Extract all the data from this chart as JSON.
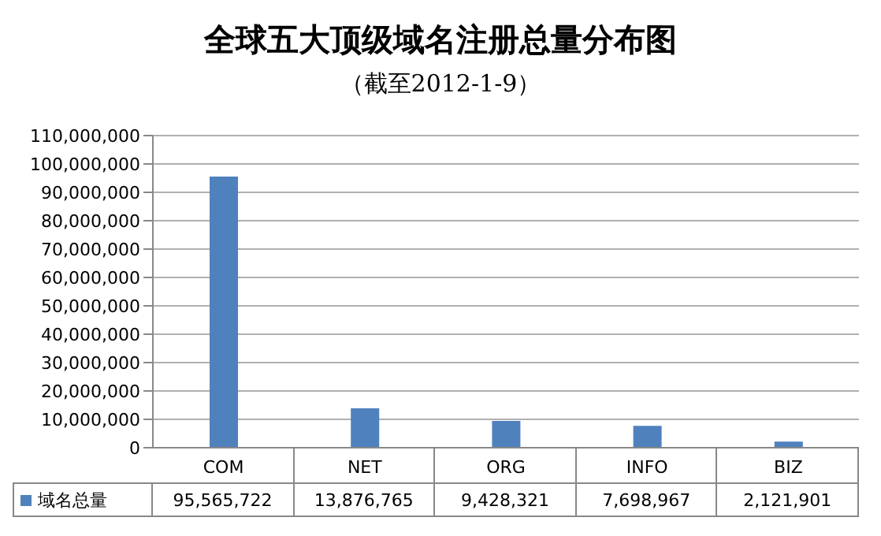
{
  "chart_data": {
    "type": "bar",
    "title": "全球五大顶级域名注册总量分布图",
    "subtitle": "（截至2012-1-9）",
    "categories": [
      "COM",
      "NET",
      "ORG",
      "INFO",
      "BIZ"
    ],
    "series": [
      {
        "name": "域名总量",
        "color": "#4f81bd",
        "values": [
          95565722,
          13876765,
          9428321,
          7698967,
          2121901
        ],
        "value_labels": [
          "95,565,722",
          "13,876,765",
          "9,428,321",
          "7,698,967",
          "2,121,901"
        ]
      }
    ],
    "ylim": [
      0,
      110000000
    ],
    "yticks": [
      0,
      {
        "value": 10000000,
        "label": "10,000,000"
      },
      {
        "value": 20000000,
        "label": "20,000,000"
      },
      {
        "value": 30000000,
        "label": "30,000,000"
      },
      {
        "value": 40000000,
        "label": "40,000,000"
      },
      {
        "value": 50000000,
        "label": "50,000,000"
      },
      {
        "value": 60000000,
        "label": "60,000,000"
      },
      {
        "value": 70000000,
        "label": "70,000,000"
      },
      {
        "value": 80000000,
        "label": "80,000,000"
      },
      {
        "value": 90000000,
        "label": "90,000,000"
      },
      {
        "value": 100000000,
        "label": "100,000,000"
      },
      {
        "value": 110000000,
        "label": "110,000,000"
      }
    ],
    "grid": "y",
    "legend": "bottom"
  }
}
